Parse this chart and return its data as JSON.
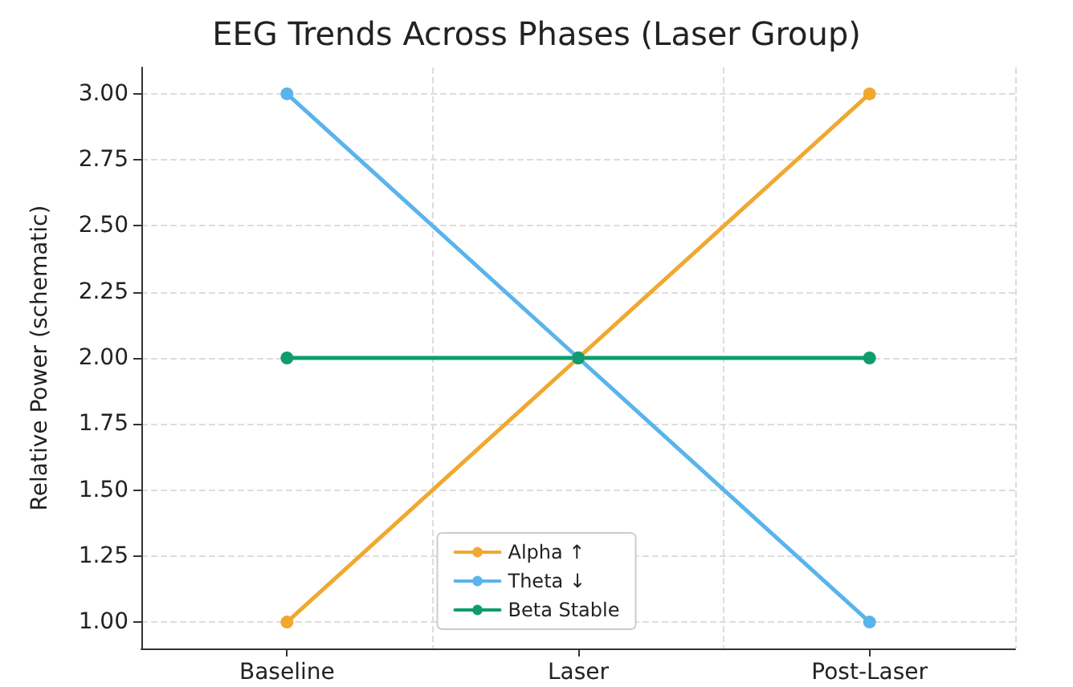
{
  "chart_data": {
    "type": "line",
    "title": "EEG Trends Across Phases (Laser Group)",
    "ylabel": "Relative Power (schematic)",
    "categories": [
      "Baseline",
      "Laser",
      "Post-Laser"
    ],
    "series": [
      {
        "name": "Alpha ↑",
        "color": "#f0a830",
        "values": [
          1,
          2,
          3
        ]
      },
      {
        "name": "Theta ↓",
        "color": "#5ab4ec",
        "values": [
          3,
          2,
          1
        ]
      },
      {
        "name": "Beta Stable",
        "color": "#0f9d6e",
        "values": [
          2,
          2,
          2
        ]
      }
    ],
    "ylim": [
      0.9,
      3.1
    ],
    "yticks": [
      {
        "value": 1,
        "label": "1.00"
      },
      {
        "value": 1.25,
        "label": "1.25"
      },
      {
        "value": 1.5,
        "label": "1.50"
      },
      {
        "value": 1.75,
        "label": "1.75"
      },
      {
        "value": 2,
        "label": "2.00"
      },
      {
        "value": 2.25,
        "label": "2.25"
      },
      {
        "value": 2.5,
        "label": "2.50"
      },
      {
        "value": 2.75,
        "label": "2.75"
      },
      {
        "value": 3,
        "label": "3.00"
      }
    ],
    "grid": true,
    "legend": "bottom",
    "marker": "circle",
    "line_style": "solid"
  }
}
